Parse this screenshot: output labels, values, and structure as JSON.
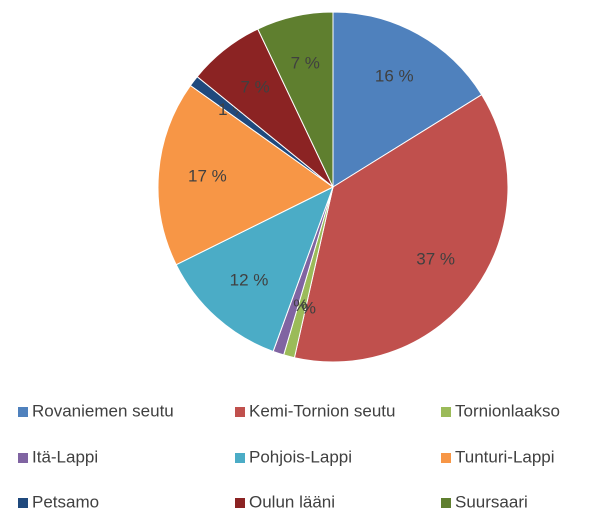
{
  "chart_data": {
    "type": "pie",
    "categories": [
      "Rovaniemen seutu",
      "Kemi-Tornion seutu",
      "Tornionlaakso",
      "Itä-Lappi",
      "Pohjois-Lappi",
      "Tunturi-Lappi",
      "Petsamo",
      "Oulun lääni",
      "Suursaari"
    ],
    "values": [
      16,
      37,
      1,
      1,
      12,
      17,
      1,
      7,
      7
    ],
    "value_labels": [
      "16 %",
      "37 %",
      "1 %",
      "1 %",
      "12 %",
      "17 %",
      "1 %",
      "7 %",
      "7 %"
    ],
    "colors": [
      "#4f81bd",
      "#c0504d",
      "#9bbb59",
      "#8064a2",
      "#4bacc6",
      "#f79646",
      "#1f497d",
      "#8b2323",
      "#5f7f2f"
    ],
    "legend": "bottom"
  }
}
